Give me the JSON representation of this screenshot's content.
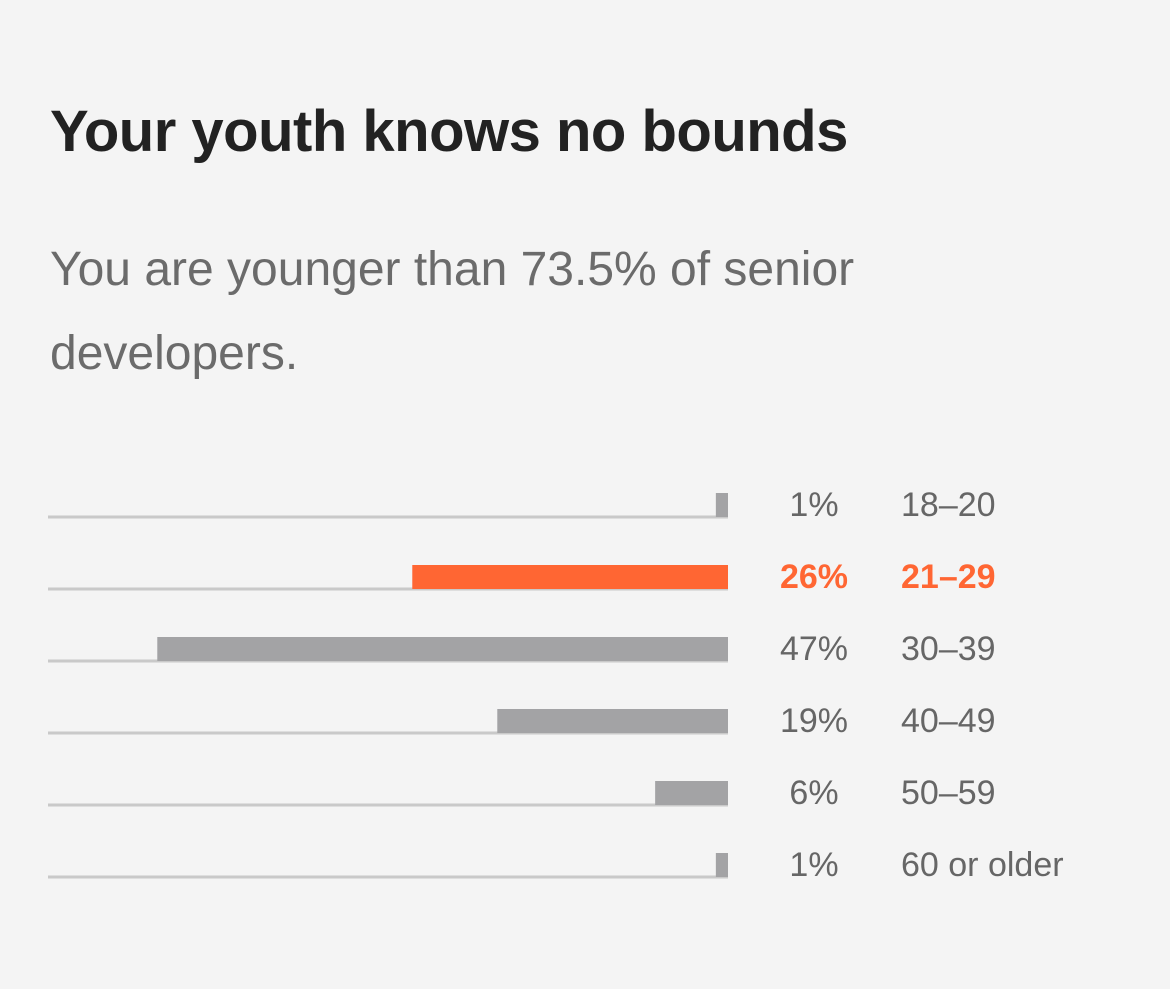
{
  "card": {
    "title": "Your youth knows no bounds",
    "subtitle": "You are younger than 73.5% of senior developers."
  },
  "colors": {
    "highlight": "#ff6633",
    "bar": "#a3a3a5",
    "track": "#c9c9c9",
    "label": "#666666"
  },
  "chart_data": {
    "type": "bar",
    "orientation": "horizontal",
    "bar_direction": "right-to-left",
    "categories": [
      "18–20",
      "21–29",
      "30–39",
      "40–49",
      "50–59",
      "60 or older"
    ],
    "values": [
      1,
      26,
      47,
      19,
      6,
      1
    ],
    "value_labels": [
      "1%",
      "26%",
      "47%",
      "19%",
      "6%",
      "1%"
    ],
    "highlighted_category": "21–29",
    "xlim": [
      0,
      56
    ],
    "grid": false,
    "legend": "none"
  }
}
